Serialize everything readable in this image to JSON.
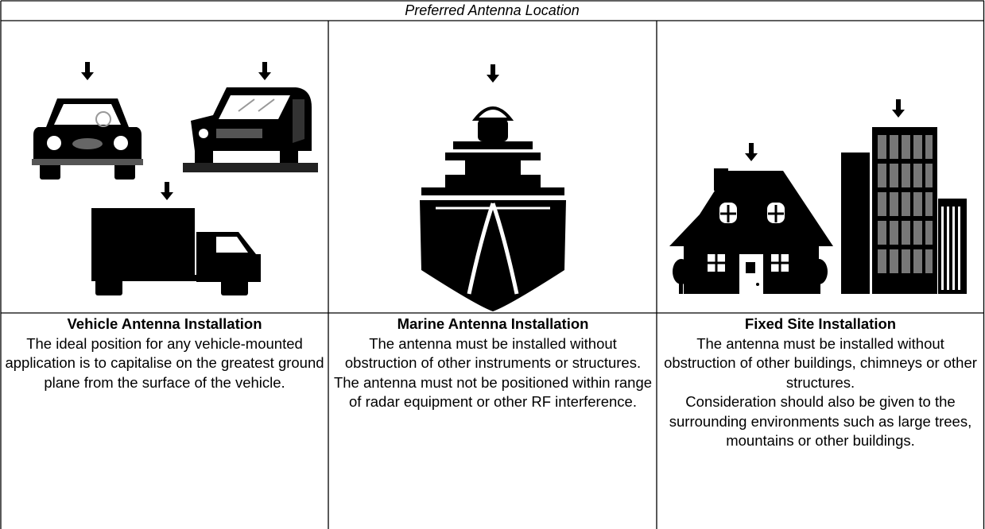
{
  "header": {
    "title": "Preferred Antenna Location"
  },
  "columns": [
    {
      "title": "Vehicle Antenna Installation",
      "paragraphs": [
        "The ideal position for any vehicle-mounted application is to capitalise on the greatest ground plane from the surface of the vehicle."
      ]
    },
    {
      "title": "Marine Antenna Installation",
      "paragraphs": [
        "The antenna must be installed without obstruction of other instruments or structures.",
        "The antenna must not be positioned within range of radar equipment or other RF interference."
      ]
    },
    {
      "title": "Fixed Site Installation",
      "paragraphs": [
        "The antenna must be installed without obstruction of other buildings, chimneys or other structures.",
        "Consideration should also be given to the surrounding environments such as large trees, mountains or other buildings."
      ]
    }
  ]
}
